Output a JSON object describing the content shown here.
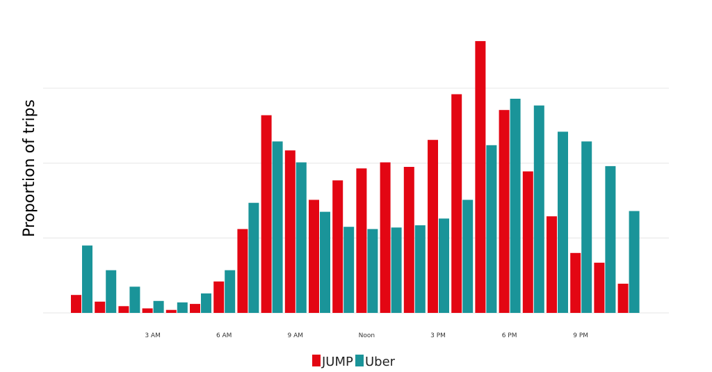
{
  "chart_data": {
    "type": "bar",
    "title": "",
    "xlabel": "",
    "ylabel": "Proportion of trips",
    "categories": [
      "0",
      "1",
      "2",
      "3",
      "4",
      "5",
      "6",
      "7",
      "8",
      "9",
      "10",
      "11",
      "12",
      "13",
      "14",
      "15",
      "16",
      "17",
      "18",
      "19",
      "20",
      "21",
      "22",
      "23"
    ],
    "tick_labels": [
      {
        "index": 3,
        "label": "3 AM"
      },
      {
        "index": 6,
        "label": "6 AM"
      },
      {
        "index": 9,
        "label": "9 AM"
      },
      {
        "index": 12,
        "label": "Noon"
      },
      {
        "index": 15,
        "label": "3 PM"
      },
      {
        "index": 18,
        "label": "6 PM"
      },
      {
        "index": 21,
        "label": "9 PM"
      }
    ],
    "series": [
      {
        "name": "JUMP",
        "color": "#e30613",
        "values": [
          0.24,
          0.15,
          0.09,
          0.06,
          0.04,
          0.12,
          0.42,
          1.12,
          2.64,
          2.17,
          1.51,
          1.77,
          1.93,
          2.01,
          1.95,
          2.31,
          2.92,
          3.63,
          2.71,
          1.89,
          1.29,
          0.8,
          0.67,
          0.39
        ]
      },
      {
        "name": "Uber",
        "color": "#1a9499",
        "values": [
          0.9,
          0.57,
          0.35,
          0.16,
          0.14,
          0.26,
          0.57,
          1.47,
          2.29,
          2.01,
          1.35,
          1.15,
          1.12,
          1.14,
          1.17,
          1.26,
          1.51,
          2.24,
          2.86,
          2.77,
          2.42,
          2.29,
          1.96,
          1.36
        ]
      }
    ],
    "ylim": [
      0,
      3.9
    ],
    "y_gridlines": [
      0,
      1,
      2,
      3
    ],
    "grid": true,
    "legend_position": "bottom-center"
  }
}
